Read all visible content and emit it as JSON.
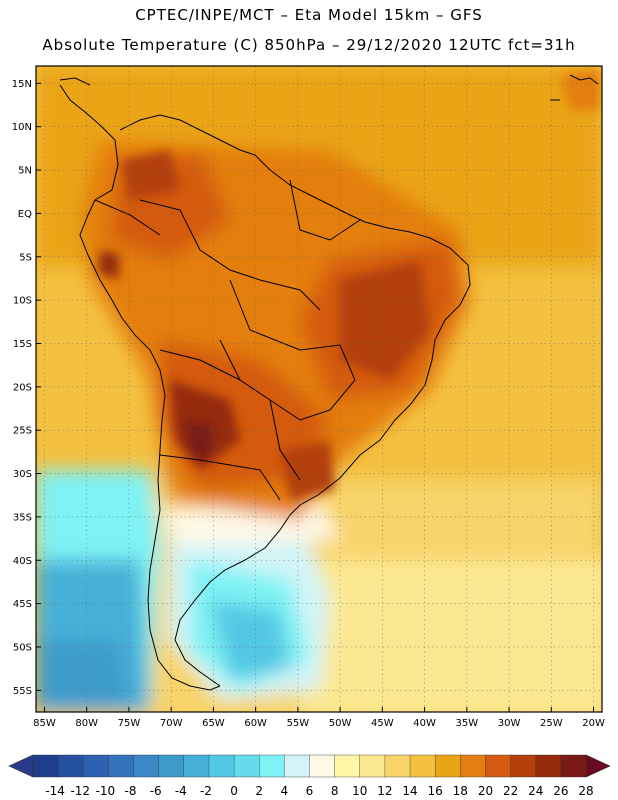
{
  "header": {
    "line1": "CPTEC/INPE/MCT –  Eta Model 15km – GFS",
    "line2": "Absolute Temperature (C) 850hPa – 29/12/2020 12UTC fct=31h"
  },
  "map": {
    "lon_range": [
      -86,
      -19
    ],
    "lat_range": [
      -57.5,
      17
    ],
    "lat_ticks": [
      {
        "value": 15,
        "label": "15N"
      },
      {
        "value": 10,
        "label": "10N"
      },
      {
        "value": 5,
        "label": "5N"
      },
      {
        "value": 0,
        "label": "EQ"
      },
      {
        "value": -5,
        "label": "5S"
      },
      {
        "value": -10,
        "label": "10S"
      },
      {
        "value": -15,
        "label": "15S"
      },
      {
        "value": -20,
        "label": "20S"
      },
      {
        "value": -25,
        "label": "25S"
      },
      {
        "value": -30,
        "label": "30S"
      },
      {
        "value": -35,
        "label": "35S"
      },
      {
        "value": -40,
        "label": "40S"
      },
      {
        "value": -45,
        "label": "45S"
      },
      {
        "value": -50,
        "label": "50S"
      },
      {
        "value": -55,
        "label": "55S"
      }
    ],
    "lon_ticks": [
      {
        "value": -85,
        "label": "85W"
      },
      {
        "value": -80,
        "label": "80W"
      },
      {
        "value": -75,
        "label": "75W"
      },
      {
        "value": -70,
        "label": "70W"
      },
      {
        "value": -65,
        "label": "65W"
      },
      {
        "value": -60,
        "label": "60W"
      },
      {
        "value": -55,
        "label": "55W"
      },
      {
        "value": -50,
        "label": "50W"
      },
      {
        "value": -45,
        "label": "45W"
      },
      {
        "value": -40,
        "label": "40W"
      },
      {
        "value": -35,
        "label": "35W"
      },
      {
        "value": -30,
        "label": "30W"
      },
      {
        "value": -25,
        "label": "25W"
      },
      {
        "value": -20,
        "label": "20W"
      }
    ]
  },
  "colorbar": {
    "labels": [
      "-14",
      "-12",
      "-10",
      "-8",
      "-6",
      "-4",
      "-2",
      "0",
      "2",
      "4",
      "6",
      "8",
      "10",
      "12",
      "14",
      "16",
      "18",
      "20",
      "22",
      "24",
      "26",
      "28"
    ],
    "low_color": "#2a3a8a",
    "high_color": "#6a0a20",
    "colors": [
      "#1e3e8c",
      "#2650a0",
      "#2e62b0",
      "#3474bc",
      "#3a88c6",
      "#3e9ccc",
      "#46b0d8",
      "#52c8e4",
      "#64dcee",
      "#7ef2f4",
      "#d2f4f8",
      "#fff8e6",
      "#fff6a8",
      "#fce892",
      "#f8d46a",
      "#f4c040",
      "#eaa418",
      "#e47e10",
      "#d45a10",
      "#b4400c",
      "#962c0e",
      "#7a1a14"
    ]
  }
}
